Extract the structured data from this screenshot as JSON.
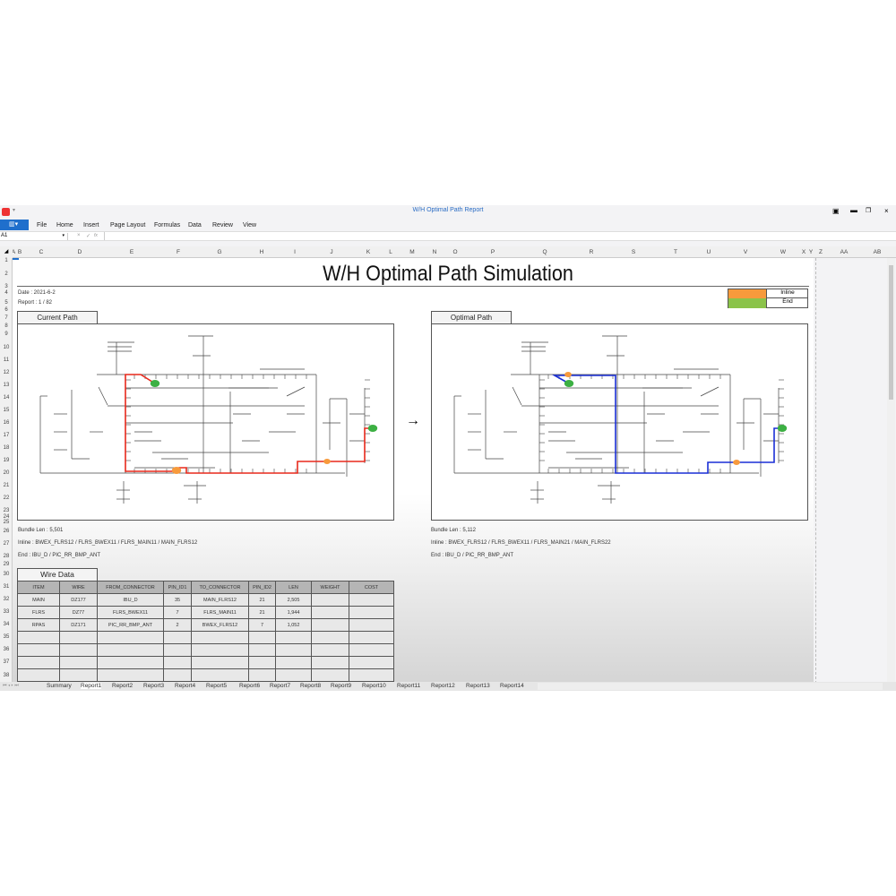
{
  "window": {
    "title": "W/H Optimal Path Report"
  },
  "menu": [
    "File",
    "Home",
    "Insert",
    "Page Layout",
    "Formulas",
    "Data",
    "Review",
    "View"
  ],
  "formula_bar": {
    "cell_ref": "A1",
    "cancel": "×",
    "confirm": "✓",
    "fx": "fx",
    "value": ""
  },
  "columns": [
    "A",
    "B",
    "C",
    "D",
    "E",
    "F",
    "G",
    "H",
    "I",
    "J",
    "K",
    "L",
    "M",
    "N",
    "O",
    "P",
    "Q",
    "R",
    "S",
    "T",
    "U",
    "V",
    "W",
    "X",
    "Y",
    "Z",
    "AA",
    "AB"
  ],
  "rows": [
    "1",
    "2",
    "3",
    "4",
    "5",
    "6",
    "7",
    "8",
    "9",
    "10",
    "11",
    "12",
    "13",
    "14",
    "15",
    "16",
    "17",
    "18",
    "19",
    "20",
    "21",
    "22",
    "23",
    "24",
    "25",
    "26",
    "27",
    "28",
    "29",
    "30",
    "31",
    "32",
    "33",
    "34",
    "35",
    "36",
    "37",
    "38"
  ],
  "report": {
    "title": "W/H Optimal Path Simulation",
    "date": "Date : 2021-6-2",
    "report_no": "Report : 1 / 82",
    "legend": [
      {
        "label": "Inline",
        "color": "#f79a3c"
      },
      {
        "label": "End",
        "color": "#8bc34a"
      }
    ],
    "current": {
      "label": "Current Path",
      "bundle_len": "Bundle Len : 5,501",
      "inline": "Inline : BWEX_FLRS12 / FLRS_BWEX11 / FLRS_MAIN11 / MAIN_FLRS12",
      "end": "End : IBU_D / PIC_RR_BMP_ANT",
      "path_color": "#e8291c"
    },
    "optimal": {
      "label": "Optimal Path",
      "bundle_len": "Bundle Len : 5,112",
      "inline": "Inline : BWEX_FLRS12 / FLRS_BWEX11 / FLRS_MAIN21 / MAIN_FLRS22",
      "end": "End : IBU_D / PIC_RR_BMP_ANT",
      "path_color": "#1a2fd6"
    },
    "arrow": "→"
  },
  "wire_data": {
    "title": "Wire Data",
    "headers": [
      "ITEM",
      "WIRE",
      "FROM_CONNECTOR",
      "PIN_ID1",
      "TO_CONNECTOR",
      "PIN_ID2",
      "LEN",
      "WEIGHT",
      "COST"
    ],
    "rows": [
      [
        "MAIN",
        "DZ177",
        "IBU_D",
        "35",
        "MAIN_FLRS12",
        "21",
        "2,505",
        "",
        ""
      ],
      [
        "FLRS",
        "DZ77",
        "FLRS_BWEX11",
        "7",
        "FLRS_MAIN11",
        "21",
        "1,944",
        "",
        ""
      ],
      [
        "RPAS",
        "DZ171",
        "PIC_RR_BMP_ANT",
        "2",
        "BWEX_FLRS12",
        "7",
        "1,052",
        "",
        ""
      ],
      [
        "",
        "",
        "",
        "",
        "",
        "",
        "",
        "",
        ""
      ],
      [
        "",
        "",
        "",
        "",
        "",
        "",
        "",
        "",
        ""
      ],
      [
        "",
        "",
        "",
        "",
        "",
        "",
        "",
        "",
        ""
      ],
      [
        "",
        "",
        "",
        "",
        "",
        "",
        "",
        "",
        ""
      ]
    ]
  },
  "sheet_tabs": [
    "Summary",
    "Report1",
    "Report2",
    "Report3",
    "Report4",
    "Report5",
    "Report6",
    "Report7",
    "Report8",
    "Report9",
    "Report10",
    "Report11",
    "Report12",
    "Report13",
    "Report14"
  ],
  "active_tab": "Report1"
}
